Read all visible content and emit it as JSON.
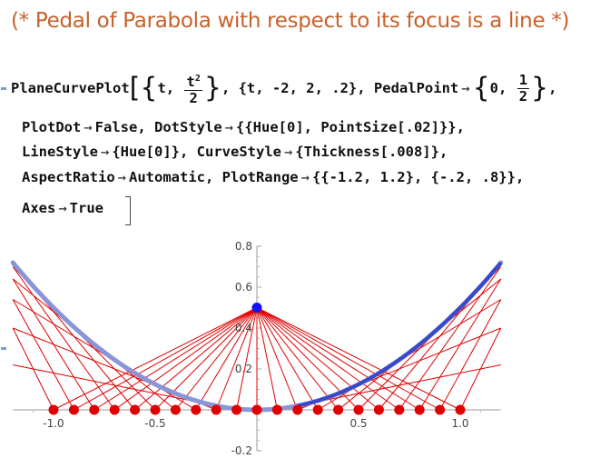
{
  "notebook": {
    "comment": "(* Pedal of Parabola with respect to its focus is a line *)",
    "input": {
      "line1_a": "PlaneCurvePlot",
      "line1_b": "t,",
      "frac1_num": "t",
      "frac1_sup": "2",
      "frac1_den": "2",
      "line1_c": ", {t, -2, 2, .2}, PedalPoint",
      "line1_d": "0,",
      "frac2_num": "1",
      "frac2_den": "2",
      "line1_e": ",",
      "line2_a": "PlotDot",
      "line2_b": "False, DotStyle",
      "line2_c": "{{Hue[0], PointSize[.02]}},",
      "line3_a": "LineStyle",
      "line3_b": "{Hue[0]}, CurveStyle",
      "line3_c": "{Thickness[.008]},",
      "line4_a": "AspectRatio",
      "line4_b": "Automatic, PlotRange",
      "line4_c": "{{-1.2, 1.2}, {-.2, .8}},",
      "line5_a": "Axes",
      "line5_b": "True",
      "arrow": "→"
    }
  },
  "chart_data": {
    "type": "line",
    "title": "",
    "xlabel": "",
    "ylabel": "",
    "xlim": [
      -1.2,
      1.2
    ],
    "ylim": [
      -0.2,
      0.8
    ],
    "x_ticks": [
      -1.0,
      -0.5,
      0.5,
      1.0
    ],
    "x_tick_labels": [
      "-1.0",
      "-0.5",
      "0.5",
      "1.0"
    ],
    "y_ticks": [
      -0.2,
      0.2,
      0.4,
      0.6,
      0.8
    ],
    "y_tick_labels": [
      "-0.2",
      "0.2",
      "0.4",
      "0.6",
      "0.8"
    ],
    "curve": "y = x^2/2",
    "pedal_point": [
      0,
      0.5
    ],
    "t_values": [
      -2.0,
      -1.8,
      -1.6,
      -1.4,
      -1.2,
      -1.0,
      -0.8,
      -0.6,
      -0.4,
      -0.2,
      0.0,
      0.2,
      0.4,
      0.6,
      0.8,
      1.0,
      1.2,
      1.4,
      1.6,
      1.8,
      2.0
    ],
    "pedal_points_x": [
      -1.0,
      -0.9,
      -0.8,
      -0.7,
      -0.6,
      -0.5,
      -0.4,
      -0.3,
      -0.2,
      -0.1,
      0.0,
      0.1,
      0.2,
      0.3,
      0.4,
      0.5,
      0.6,
      0.7,
      0.8,
      0.9,
      1.0
    ],
    "pedal_points_y": 0,
    "colors": {
      "curve": "#3848c8",
      "lines": "#e00000",
      "dots": "#e00000",
      "pedal_point": "#1010ff"
    }
  }
}
